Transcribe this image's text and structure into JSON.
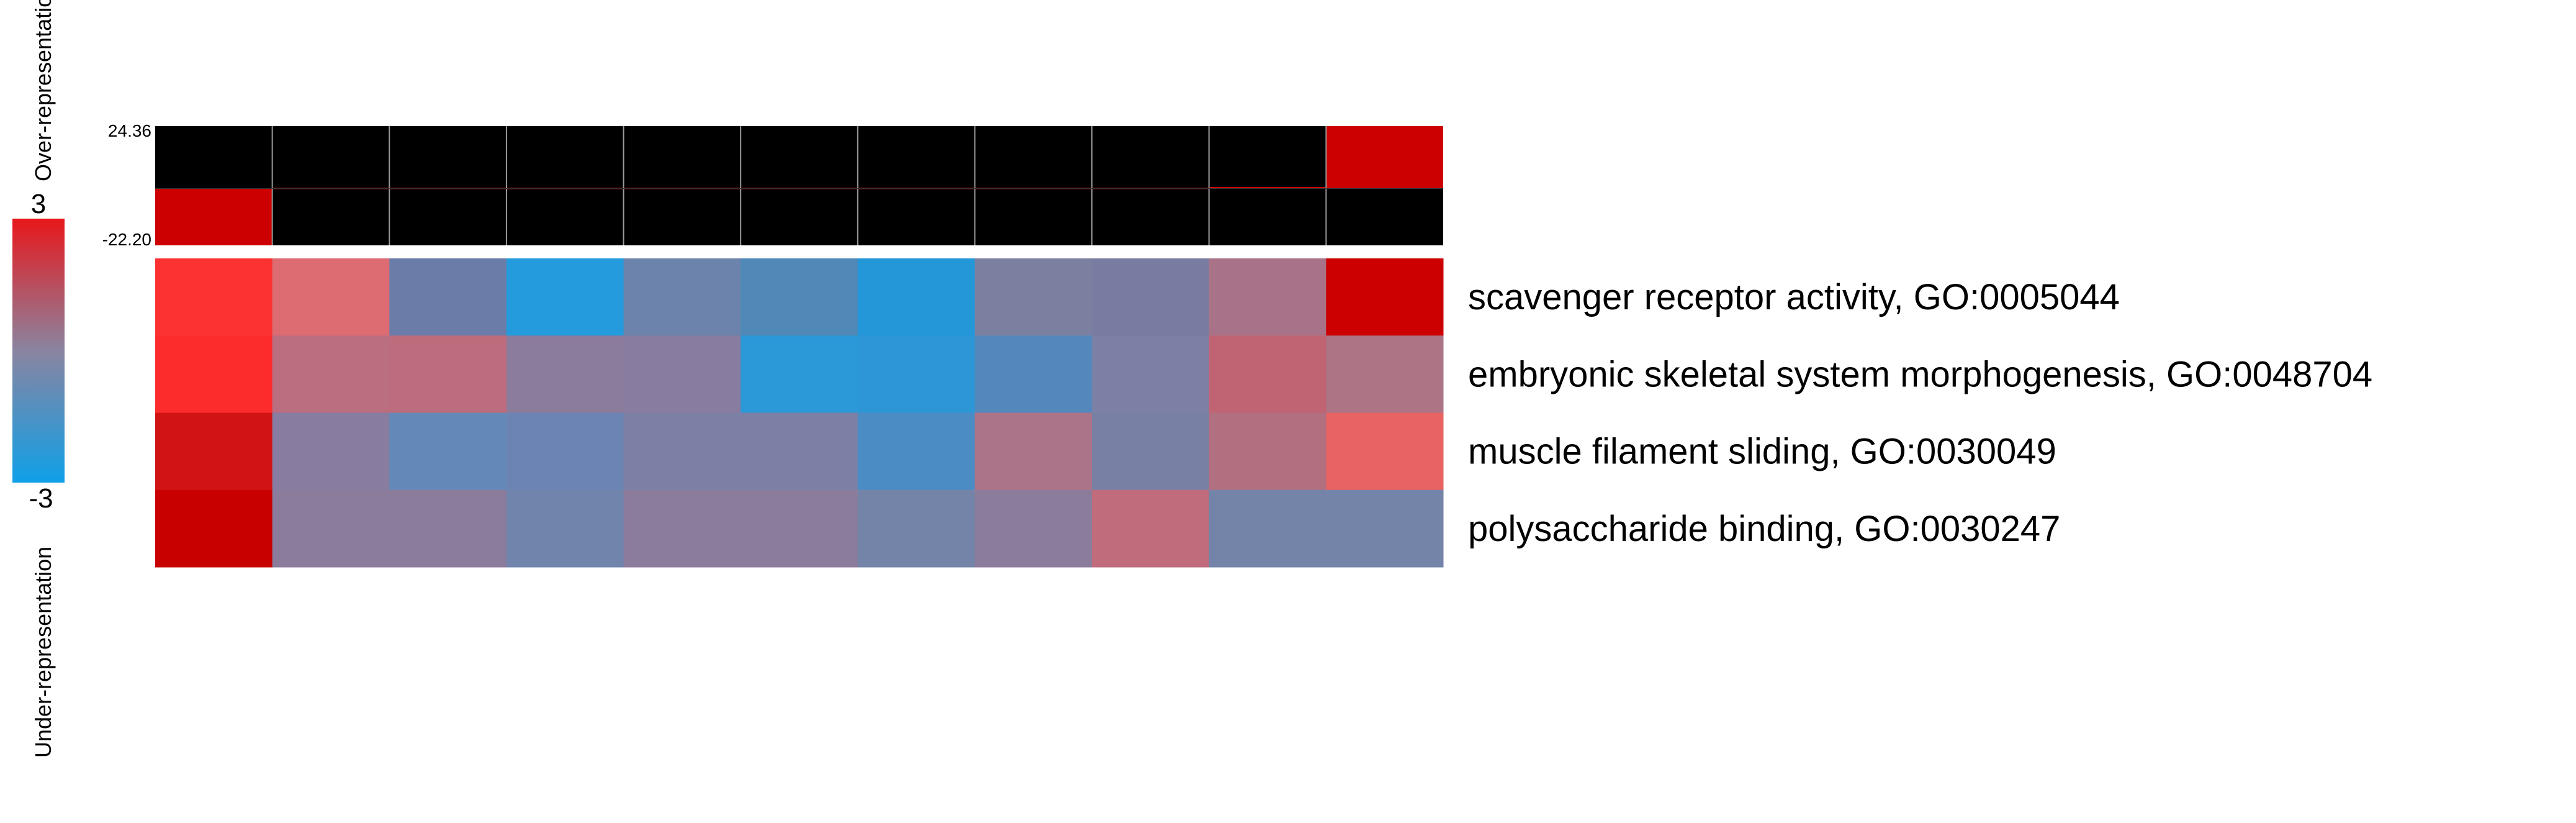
{
  "chart_data": {
    "type": "heatmap",
    "title": "",
    "legend": {
      "max_label": "3",
      "min_label": "-3",
      "over_label": "Over-representation",
      "under_label": "Under-representation",
      "colors": {
        "high": "#e8171b",
        "mid": "#8a84a0",
        "low": "#0fa0e8"
      }
    },
    "bar_panel": {
      "max_label": "24.36",
      "min_label": "-22.20",
      "ylim": [
        -22.2,
        24.36
      ],
      "values": [
        -22.2,
        -0.3,
        -0.2,
        0.0,
        0.0,
        0.0,
        -0.1,
        0.0,
        0.4,
        0.6,
        24.36
      ],
      "positive_color": "#cc0000",
      "negative_color": "#cc0000",
      "background": "#000000"
    },
    "rows": [
      "scavenger receptor activity, GO:0005044",
      "embryonic skeletal system morphogenesis, GO:0048704",
      "muscle filament sliding, GO:0030049",
      "polysaccharide binding, GO:0030247"
    ],
    "n_columns": 11,
    "values": [
      [
        3,
        1.9,
        -1.2,
        -3,
        -1.1,
        -1.5,
        -3,
        -0.3,
        -0.2,
        0.6,
        3
      ],
      [
        3,
        0.8,
        1.0,
        -0.2,
        -0.1,
        -3,
        -3,
        -1.8,
        -0.5,
        1.1,
        0.7
      ],
      [
        3,
        -0.1,
        -1.4,
        -1.3,
        -0.5,
        -0.5,
        -2.2,
        0.6,
        -0.6,
        0.9,
        2.5
      ],
      [
        3,
        -0.1,
        0.0,
        -0.8,
        -0.1,
        -0.1,
        -1.0,
        -0.2,
        1.4,
        -1.0,
        -1.0
      ]
    ],
    "cell_colors": [
      [
        "#fc3232",
        "#dc6b72",
        "#6c7ca8",
        "#239bdc",
        "#6c84ac",
        "#5088b8",
        "#2397d8",
        "#7c80a0",
        "#787ca0",
        "#a87388",
        "#cc0000"
      ],
      [
        "#fc2c2c",
        "#ba6e80",
        "#bc6c7c",
        "#8c7c9c",
        "#887ca0",
        "#2b99d8",
        "#2d96d4",
        "#5488bc",
        "#7c80a4",
        "#c06474",
        "#ac7485"
      ],
      [
        "#d01414",
        "#887ca0",
        "#6488b8",
        "#6c84b4",
        "#7c80a4",
        "#7c80a4",
        "#4b8cc4",
        "#ac7488",
        "#7880a4",
        "#b0707f",
        "#e86464"
      ],
      [
        "#c80000",
        "#8c7c9c",
        "#8c7c9c",
        "#7084ac",
        "#8c7c9c",
        "#8c7c9c",
        "#7484a8",
        "#8c7c9c",
        "#c06c7c",
        "#7484a8",
        "#7484a8"
      ]
    ]
  }
}
